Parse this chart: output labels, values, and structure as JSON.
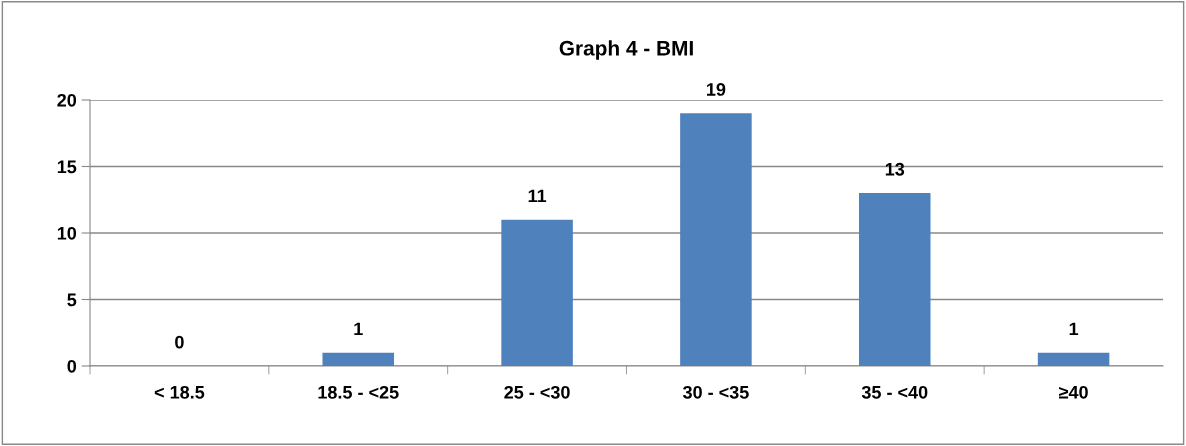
{
  "chart_data": {
    "type": "bar",
    "title": "Graph 4 - BMI",
    "categories": [
      "< 18.5",
      "18.5 - <25",
      "25 - <30",
      "30 - <35",
      "35 - <40",
      "≥40"
    ],
    "values": [
      0,
      1,
      11,
      19,
      13,
      1
    ],
    "color": "#4f81bd",
    "ylim": [
      0,
      20
    ],
    "yticks": [
      0,
      5,
      10,
      15,
      20
    ],
    "grid": "y",
    "data_labels": true,
    "legend": false
  }
}
